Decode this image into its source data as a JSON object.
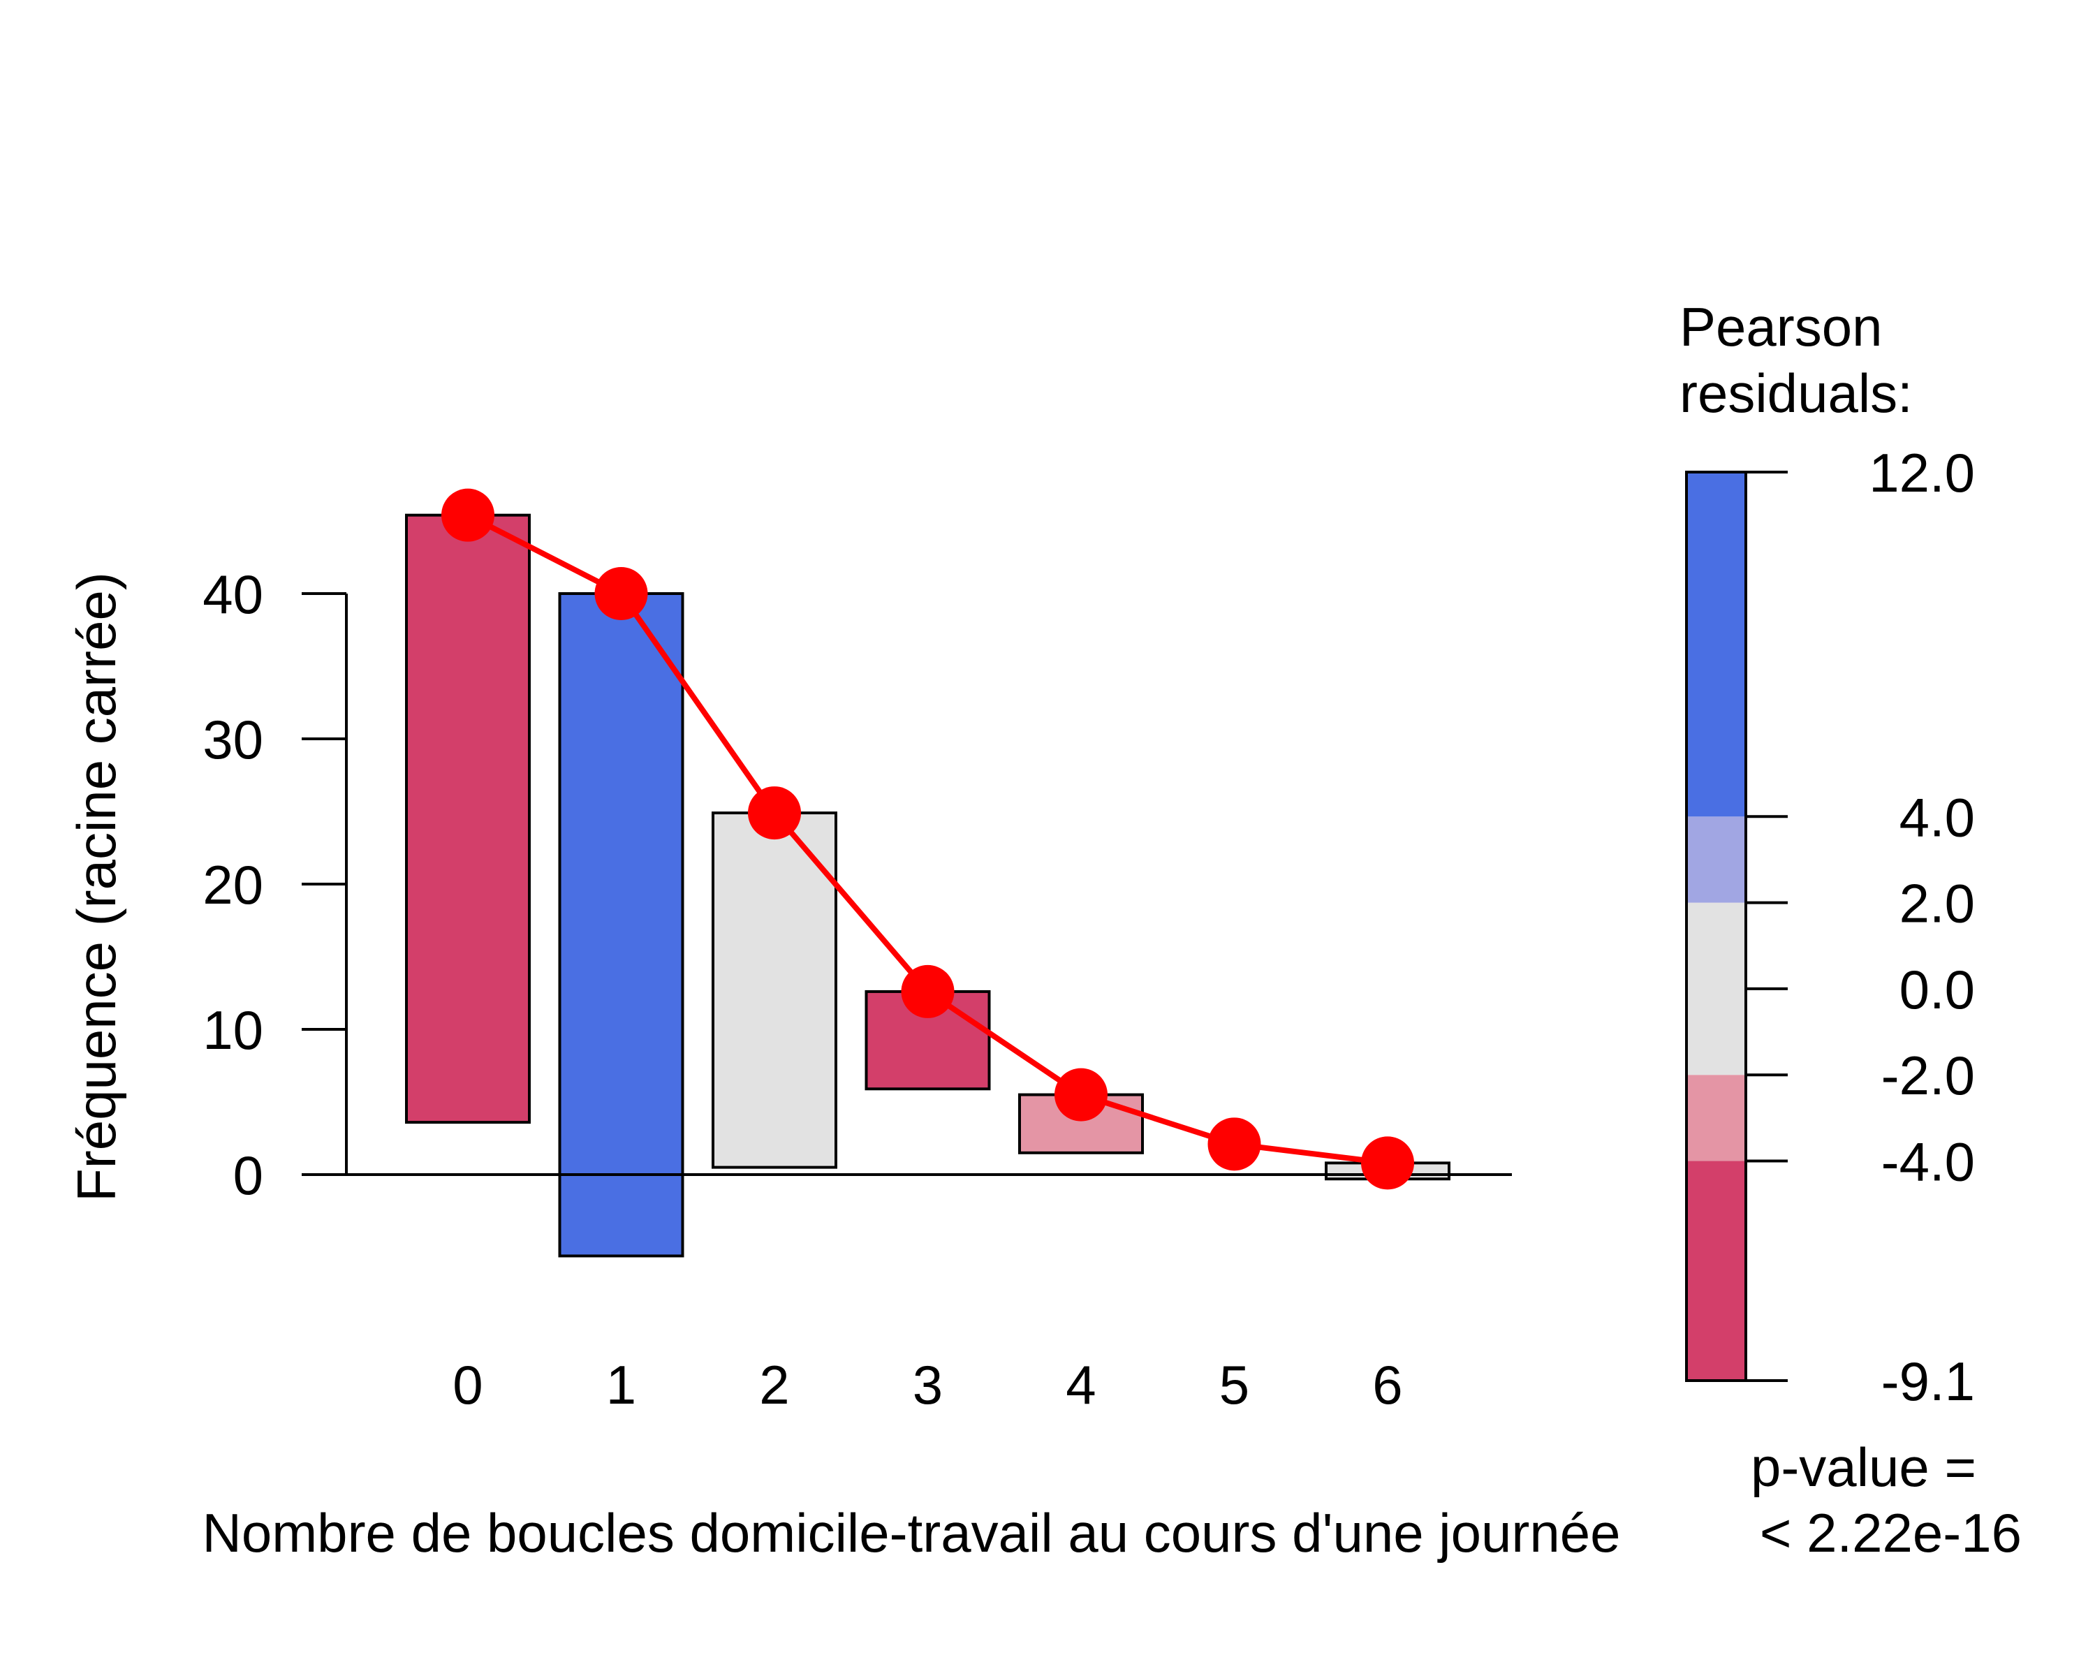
{
  "chart_data": {
    "type": "bar",
    "subtype": "hanging rootogram",
    "title": "",
    "xlabel": "Nombre de boucles domicile-travail au cours d'une journée",
    "ylabel": "Fréquence (racine carrée)",
    "categories": [
      "0",
      "1",
      "2",
      "3",
      "4",
      "5",
      "6"
    ],
    "bar_top": [
      45.4,
      40.0,
      24.9,
      12.6,
      5.5,
      2.1,
      0.8
    ],
    "bar_bottom": [
      3.6,
      -5.6,
      0.5,
      5.9,
      1.5,
      2.1,
      -0.3
    ],
    "bar_colors": [
      "#D33F6A",
      "#4A6FE3",
      "#E2E2E2",
      "#D33F6A",
      "#E495A5",
      "#D33F6A",
      "#E2E2E2"
    ],
    "expected": {
      "values": [
        45.4,
        40.0,
        24.9,
        12.6,
        5.5,
        2.1,
        0.8
      ],
      "color": "#FF0000"
    },
    "yticks": [
      0,
      10,
      20,
      30,
      40
    ],
    "ylim": [
      -10,
      50
    ],
    "legend": {
      "title_lines": [
        "Pearson",
        "residuals:"
      ],
      "breaks": [
        -9.1,
        -4.0,
        -2.0,
        0.0,
        2.0,
        4.0,
        12.0
      ],
      "labels": [
        "-9.1",
        "-4.0",
        "-2.0",
        "0.0",
        "2.0",
        "4.0",
        "12.0"
      ],
      "bands": [
        {
          "from": -9.1,
          "to": -4.0,
          "color": "#D33F6A"
        },
        {
          "from": -4.0,
          "to": -2.0,
          "color": "#E495A5"
        },
        {
          "from": -2.0,
          "to": 2.0,
          "color": "#E2E2E2"
        },
        {
          "from": 2.0,
          "to": 4.0,
          "color": "#A1A6E3"
        },
        {
          "from": 4.0,
          "to": 12.0,
          "color": "#4A6FE3"
        }
      ],
      "pvalue_lines": [
        "p-value =",
        "< 2.22e-16"
      ],
      "placement": "right"
    }
  }
}
